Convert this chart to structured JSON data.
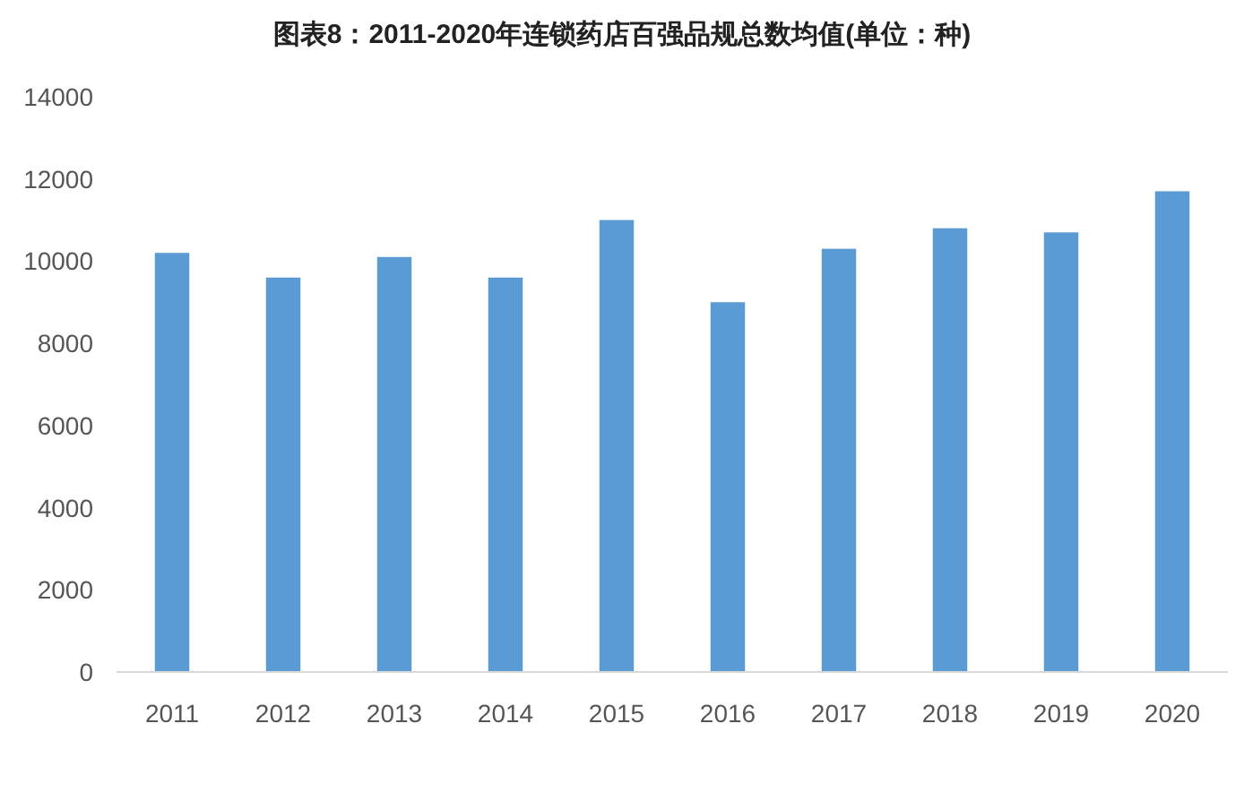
{
  "chart_data": {
    "type": "bar",
    "title": "图表8：2011-2020年连锁药店百强品规总数均值(单位：种)",
    "categories": [
      "2011",
      "2012",
      "2013",
      "2014",
      "2015",
      "2016",
      "2017",
      "2018",
      "2019",
      "2020"
    ],
    "values": [
      10200,
      9600,
      10100,
      9600,
      11000,
      9000,
      10300,
      10800,
      10700,
      11700
    ],
    "color": "#5b9bd5",
    "ylim": [
      0,
      14000
    ],
    "yticks": [
      0,
      2000,
      4000,
      6000,
      8000,
      10000,
      12000,
      14000
    ],
    "grid": false
  }
}
